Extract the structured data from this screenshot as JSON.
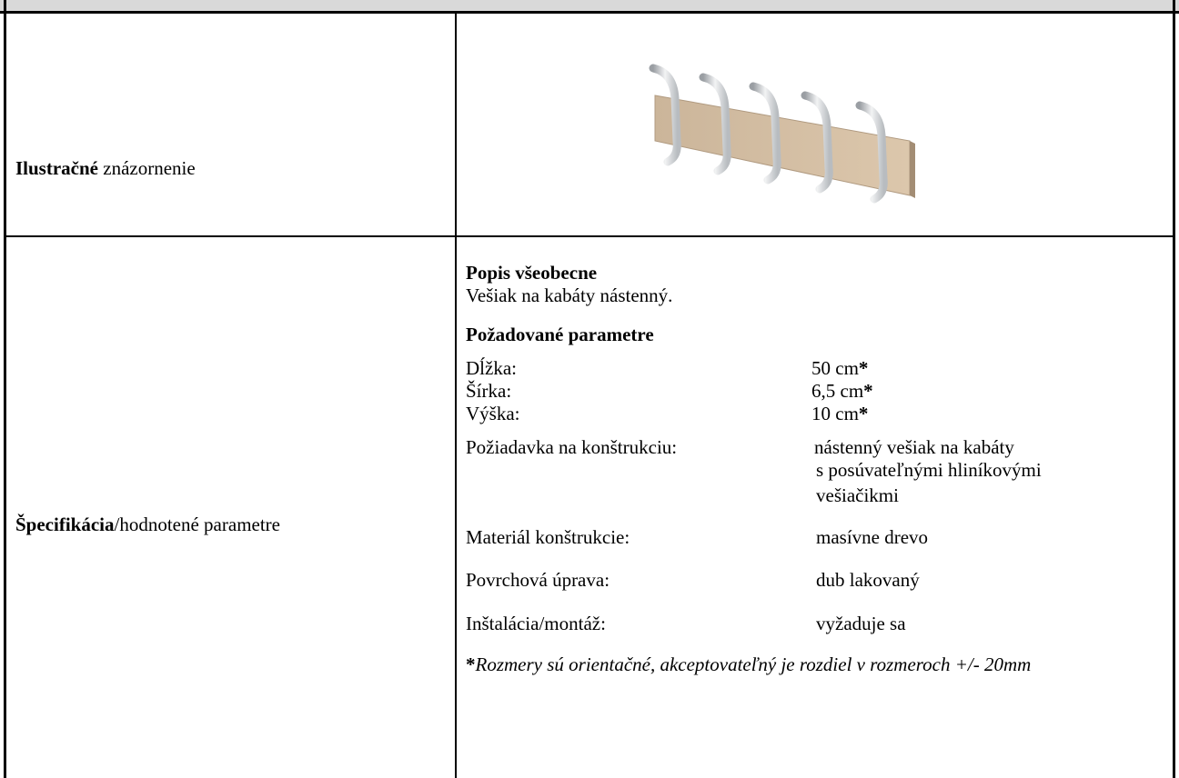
{
  "row1": {
    "label_bold": "Ilustračné",
    "label_rest": "znázornenie"
  },
  "row2": {
    "label_bold": "Špecifikácia",
    "label_rest": "/hodnotené parametre",
    "general": {
      "heading": "Popis všeobecne",
      "text": "Vešiak na kabáty nástenný."
    },
    "parameters": {
      "heading": "Požadované parametre",
      "asterisk": "*",
      "dimensions": [
        {
          "label": "Dĺžka:",
          "value": "50 cm"
        },
        {
          "label": "Šírka:",
          "value": "6,5 cm"
        },
        {
          "label": "Výška:",
          "value": "10 cm"
        }
      ],
      "construction": {
        "label": "Požiadavka na konštrukciu:",
        "lines": [
          "nástenný vešiak na kabáty",
          "s posúvateľnými hliníkovými",
          "vešiačikmi"
        ]
      },
      "others": [
        {
          "label": "Materiál konštrukcie:",
          "value": "masívne drevo"
        },
        {
          "label": "Povrchová úprava:",
          "value": "dub lakovaný"
        },
        {
          "label": "Inštalácia/montáž:",
          "value": "vyžaduje sa"
        }
      ]
    },
    "note": "Rozmery sú orientačné, akceptovateľný je rozdiel v rozmeroch +/- 20mm"
  }
}
